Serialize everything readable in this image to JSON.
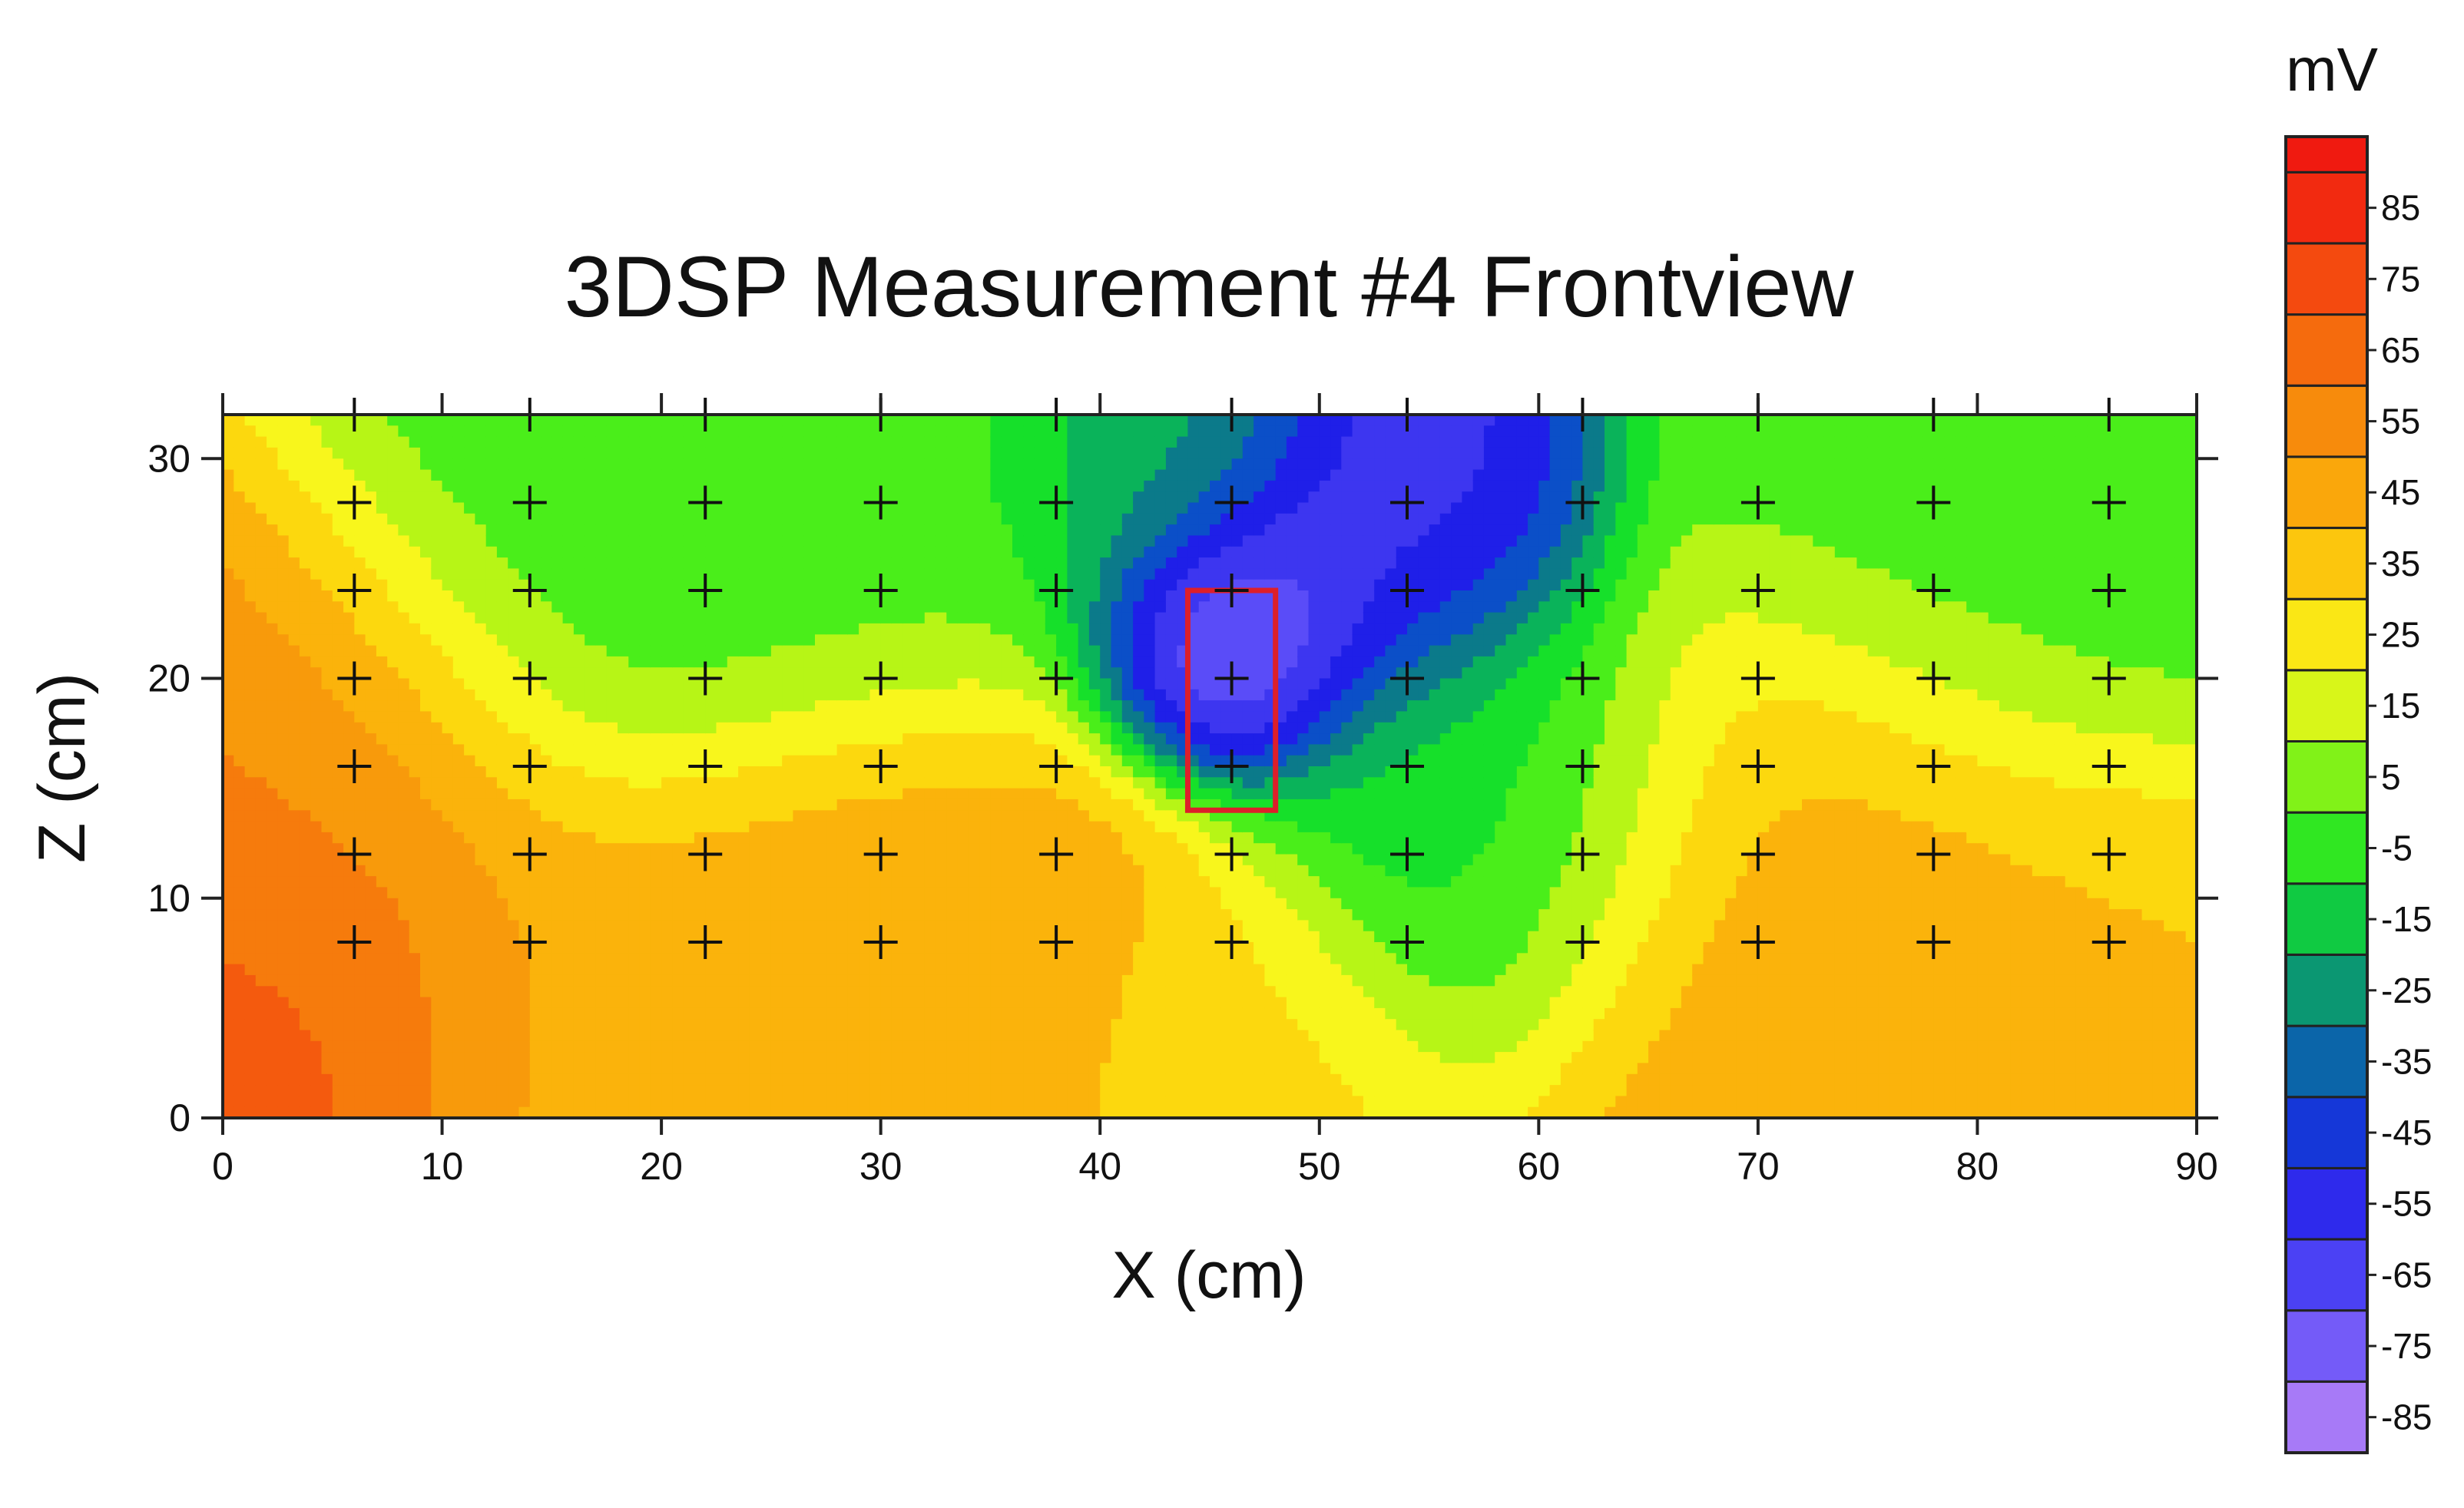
{
  "chart_data": {
    "type": "heatmap",
    "title": "3DSP Measurement #4 Frontview",
    "xlabel": "X (cm)",
    "ylabel": "Z (cm)",
    "xlim": [
      0,
      90
    ],
    "ylim": [
      0,
      32
    ],
    "x_ticks": [
      "0",
      "10",
      "20",
      "30",
      "40",
      "50",
      "60",
      "70",
      "80",
      "90"
    ],
    "y_ticks": [
      "0",
      "10",
      "20",
      "30"
    ],
    "colorbar": {
      "unit": "mV",
      "range": [
        -90,
        95
      ],
      "levels_step": 10,
      "tick_labels": [
        "85",
        "75",
        "65",
        "55",
        "45",
        "35",
        "25",
        "15",
        "5",
        "-5",
        "-15",
        "-25",
        "-35",
        "-45",
        "-55",
        "-65",
        "-75",
        "-85"
      ]
    },
    "colormap": [
      {
        "v": -85,
        "color": "#a77af7"
      },
      {
        "v": -70,
        "color": "#5a4cf8"
      },
      {
        "v": -50,
        "color": "#1f1fe8"
      },
      {
        "v": -40,
        "color": "#0b4fc8"
      },
      {
        "v": -30,
        "color": "#0b7a8a"
      },
      {
        "v": -20,
        "color": "#0ab35a"
      },
      {
        "v": -10,
        "color": "#16e02a"
      },
      {
        "v": 0,
        "color": "#4aee1a"
      },
      {
        "v": 10,
        "color": "#b7f516"
      },
      {
        "v": 20,
        "color": "#f8f61c"
      },
      {
        "v": 30,
        "color": "#fcd80e"
      },
      {
        "v": 40,
        "color": "#fbb30b"
      },
      {
        "v": 50,
        "color": "#f89a0b"
      },
      {
        "v": 60,
        "color": "#f67b0c"
      },
      {
        "v": 70,
        "color": "#f45a0e"
      },
      {
        "v": 80,
        "color": "#f33a10"
      },
      {
        "v": 90,
        "color": "#f01a10"
      }
    ],
    "field_sources": [
      {
        "x": 0,
        "z": 4,
        "value": 70,
        "spread": 6
      },
      {
        "x": 4,
        "z": 16,
        "value": 55,
        "spread": 7
      },
      {
        "x": 20,
        "z": 4,
        "value": 42,
        "spread": 7
      },
      {
        "x": 32,
        "z": 8,
        "value": 45,
        "spread": 7
      },
      {
        "x": 72,
        "z": 10,
        "value": 45,
        "spread": 8
      },
      {
        "x": 88,
        "z": 4,
        "value": 35,
        "spread": 6
      },
      {
        "x": 46,
        "z": 3,
        "value": 28,
        "spread": 5
      },
      {
        "x": 16,
        "z": 26,
        "value": -5,
        "spread": 7
      },
      {
        "x": 30,
        "z": 28,
        "value": 0,
        "spread": 7
      },
      {
        "x": 80,
        "z": 28,
        "value": -3,
        "spread": 8
      },
      {
        "x": 46,
        "z": 22,
        "value": -85,
        "spread": 3.5
      },
      {
        "x": 54,
        "z": 27,
        "value": -60,
        "spread": 4.5
      },
      {
        "x": 58,
        "z": 14,
        "value": -15,
        "spread": 6
      },
      {
        "x": 42,
        "z": 30,
        "value": -25,
        "spread": 4
      }
    ],
    "measurement_points_x": [
      6,
      14,
      22,
      30,
      38,
      46,
      54,
      62,
      70,
      78,
      86
    ],
    "measurement_points_z": [
      8,
      12,
      16,
      20,
      24,
      28
    ],
    "top_edge_markers_x": [
      6,
      14,
      22,
      30,
      38,
      46,
      54,
      62,
      70,
      78,
      86
    ],
    "highlight_rect": {
      "x": [
        44,
        48
      ],
      "z": [
        14,
        24
      ],
      "color": "#dd1f2a"
    }
  }
}
